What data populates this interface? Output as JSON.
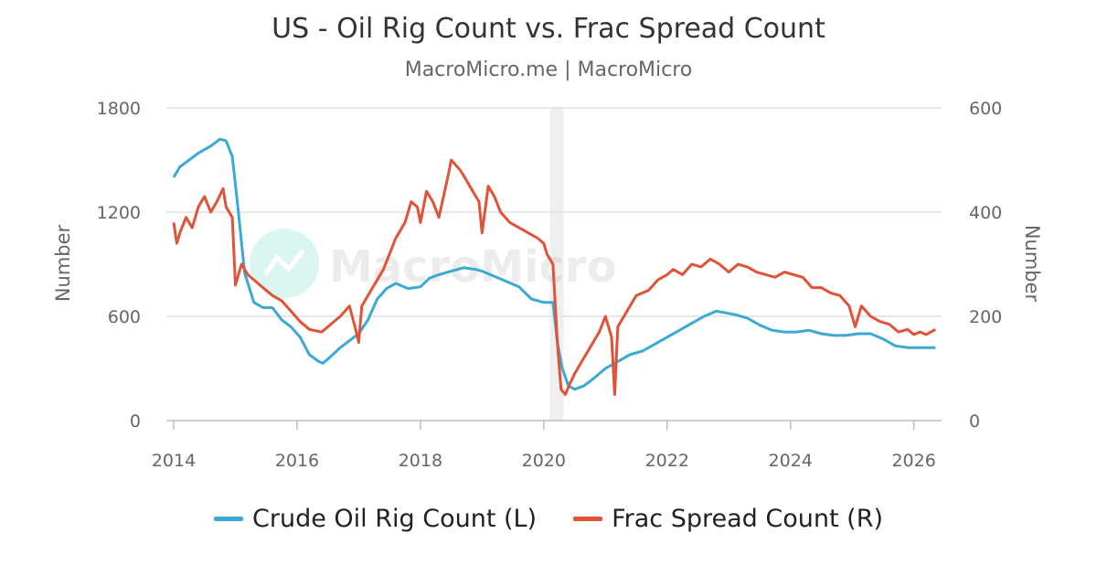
{
  "title": "US - Oil Rig Count vs. Frac Spread Count",
  "subtitle": "MacroMicro.me | MacroMicro",
  "watermark": "MacroMicro",
  "colors": {
    "rig": "#3aa9d4",
    "frac": "#e05339",
    "grid": "#e1e1e1",
    "recession": "#efefef"
  },
  "chart_data": {
    "type": "line",
    "title": "US - Oil Rig Count vs. Frac Spread Count",
    "ylabel_left": "Number",
    "ylabel_right": "Number",
    "xlim": [
      2014.0,
      2026.45
    ],
    "ylim_left": [
      0,
      1800
    ],
    "ylim_right": [
      0,
      600
    ],
    "x_ticks": [
      2014,
      2016,
      2018,
      2020,
      2022,
      2024,
      2026
    ],
    "y_ticks_left": [
      0,
      600,
      1200,
      1800
    ],
    "y_ticks_right": [
      0,
      200,
      400,
      600
    ],
    "grid": true,
    "legend_position": "bottom",
    "shaded_regions": [
      {
        "start": 2020.1,
        "end": 2020.32
      }
    ],
    "series": [
      {
        "name": "Crude Oil Rig Count (L)",
        "axis": "left",
        "x": [
          2014.0,
          2014.1,
          2014.25,
          2014.4,
          2014.6,
          2014.75,
          2014.85,
          2014.95,
          2015.05,
          2015.15,
          2015.3,
          2015.45,
          2015.6,
          2015.75,
          2015.9,
          2016.05,
          2016.2,
          2016.35,
          2016.42,
          2016.55,
          2016.7,
          2016.85,
          2017.0,
          2017.15,
          2017.3,
          2017.45,
          2017.6,
          2017.8,
          2018.0,
          2018.15,
          2018.3,
          2018.5,
          2018.7,
          2018.9,
          2019.0,
          2019.2,
          2019.4,
          2019.6,
          2019.8,
          2020.0,
          2020.15,
          2020.22,
          2020.3,
          2020.4,
          2020.5,
          2020.65,
          2020.8,
          2021.0,
          2021.2,
          2021.4,
          2021.6,
          2021.8,
          2022.0,
          2022.2,
          2022.4,
          2022.6,
          2022.8,
          2022.95,
          2023.1,
          2023.3,
          2023.5,
          2023.7,
          2023.9,
          2024.1,
          2024.3,
          2024.5,
          2024.7,
          2024.9,
          2025.1,
          2025.3,
          2025.5,
          2025.7,
          2025.9,
          2026.1,
          2026.35
        ],
        "values": [
          1400,
          1460,
          1500,
          1540,
          1580,
          1620,
          1610,
          1520,
          1200,
          850,
          680,
          650,
          650,
          580,
          540,
          480,
          380,
          340,
          330,
          370,
          420,
          460,
          500,
          580,
          700,
          760,
          790,
          760,
          770,
          820,
          840,
          860,
          880,
          870,
          860,
          830,
          800,
          770,
          700,
          680,
          680,
          450,
          300,
          200,
          180,
          200,
          240,
          300,
          340,
          380,
          400,
          440,
          480,
          520,
          560,
          600,
          630,
          620,
          610,
          590,
          550,
          520,
          510,
          510,
          520,
          500,
          490,
          490,
          500,
          500,
          470,
          430,
          420,
          420,
          420
        ]
      },
      {
        "name": "Frac Spread Count (R)",
        "axis": "right",
        "x": [
          2014.0,
          2014.05,
          2014.1,
          2014.2,
          2014.3,
          2014.4,
          2014.5,
          2014.6,
          2014.7,
          2014.8,
          2014.85,
          2014.95,
          2015.0,
          2015.1,
          2015.2,
          2015.3,
          2015.45,
          2015.6,
          2015.75,
          2015.9,
          2016.05,
          2016.2,
          2016.4,
          2016.55,
          2016.7,
          2016.85,
          2016.95,
          2017.0,
          2017.05,
          2017.2,
          2017.4,
          2017.6,
          2017.75,
          2017.85,
          2017.95,
          2018.0,
          2018.1,
          2018.2,
          2018.3,
          2018.45,
          2018.5,
          2018.65,
          2018.75,
          2018.85,
          2018.95,
          2019.0,
          2019.1,
          2019.2,
          2019.3,
          2019.45,
          2019.6,
          2019.75,
          2019.9,
          2020.0,
          2020.05,
          2020.15,
          2020.22,
          2020.28,
          2020.35,
          2020.42,
          2020.5,
          2020.6,
          2020.75,
          2020.9,
          2021.0,
          2021.1,
          2021.15,
          2021.2,
          2021.35,
          2021.5,
          2021.7,
          2021.85,
          2022.0,
          2022.1,
          2022.25,
          2022.4,
          2022.55,
          2022.7,
          2022.85,
          2023.0,
          2023.15,
          2023.3,
          2023.45,
          2023.6,
          2023.75,
          2023.9,
          2024.05,
          2024.2,
          2024.35,
          2024.5,
          2024.65,
          2024.8,
          2024.95,
          2025.05,
          2025.15,
          2025.3,
          2025.45,
          2025.6,
          2025.75,
          2025.9,
          2026.0,
          2026.1,
          2026.2,
          2026.35
        ],
        "values": [
          380,
          340,
          360,
          390,
          370,
          410,
          430,
          400,
          420,
          445,
          410,
          390,
          260,
          300,
          280,
          270,
          255,
          240,
          230,
          210,
          190,
          175,
          170,
          185,
          200,
          220,
          175,
          150,
          220,
          250,
          290,
          350,
          380,
          420,
          410,
          380,
          440,
          420,
          390,
          470,
          500,
          480,
          460,
          440,
          420,
          360,
          450,
          430,
          400,
          380,
          370,
          360,
          350,
          340,
          320,
          300,
          150,
          60,
          50,
          70,
          90,
          110,
          140,
          170,
          200,
          160,
          50,
          180,
          210,
          240,
          250,
          270,
          280,
          290,
          280,
          300,
          295,
          310,
          300,
          285,
          300,
          295,
          285,
          280,
          275,
          285,
          280,
          275,
          255,
          255,
          245,
          240,
          220,
          180,
          220,
          200,
          190,
          185,
          170,
          175,
          165,
          170,
          165,
          175
        ]
      }
    ]
  },
  "legend": {
    "items": [
      {
        "label": "Crude Oil Rig Count (L)"
      },
      {
        "label": "Frac Spread Count (R)"
      }
    ]
  }
}
